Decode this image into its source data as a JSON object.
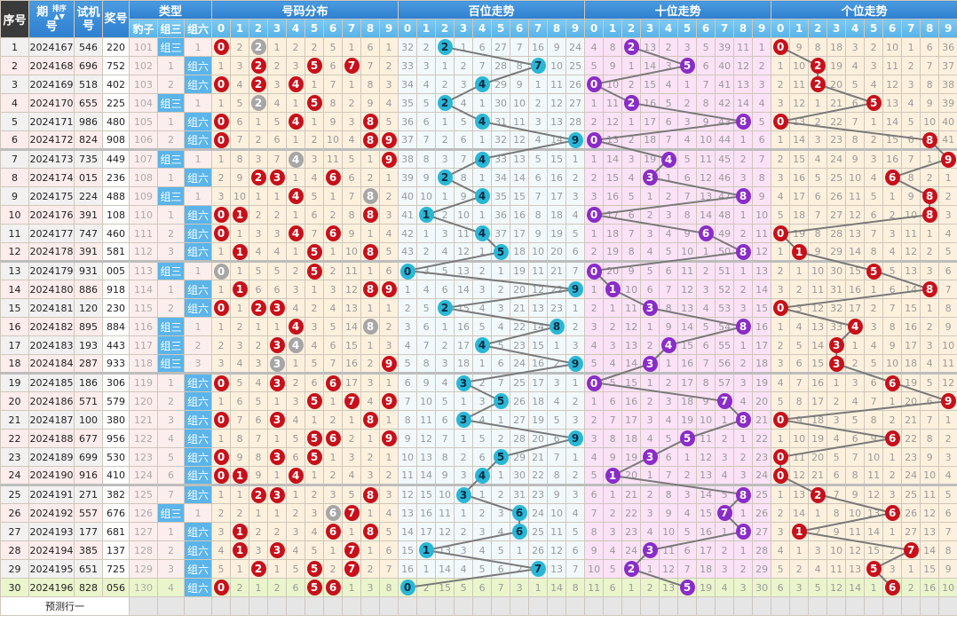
{
  "header": {
    "seq": "序号",
    "issue_a": "期",
    "issue_b": "号",
    "sort": "排序",
    "sort_arrows": "▲▼",
    "trial_a": "试机",
    "trial_b": "号",
    "draw": "奖号",
    "type": "类型",
    "type_cols": [
      "豹子",
      "组三",
      "组六"
    ],
    "sections": [
      "号码分布",
      "百位走势",
      "十位走势",
      "个位走势"
    ],
    "digits": [
      "0",
      "1",
      "2",
      "3",
      "4",
      "5",
      "6",
      "7",
      "8",
      "9"
    ]
  },
  "rows": [
    {
      "seq": "1",
      "issue": "2024167",
      "trial": "546",
      "draw": "220"
    },
    {
      "seq": "2",
      "issue": "2024168",
      "trial": "696",
      "draw": "752"
    },
    {
      "seq": "3",
      "issue": "2024169",
      "trial": "518",
      "draw": "402"
    },
    {
      "seq": "4",
      "issue": "2024170",
      "trial": "655",
      "draw": "225"
    },
    {
      "seq": "5",
      "issue": "2024171",
      "trial": "986",
      "draw": "480"
    },
    {
      "seq": "6",
      "issue": "2024172",
      "trial": "824",
      "draw": "908"
    },
    {
      "seq": "7",
      "issue": "2024173",
      "trial": "735",
      "draw": "449"
    },
    {
      "seq": "8",
      "issue": "2024174",
      "trial": "015",
      "draw": "236"
    },
    {
      "seq": "9",
      "issue": "2024175",
      "trial": "224",
      "draw": "488"
    },
    {
      "seq": "10",
      "issue": "2024176",
      "trial": "391",
      "draw": "108"
    },
    {
      "seq": "11",
      "issue": "2024177",
      "trial": "747",
      "draw": "460"
    },
    {
      "seq": "12",
      "issue": "2024178",
      "trial": "391",
      "draw": "581"
    },
    {
      "seq": "13",
      "issue": "2024179",
      "trial": "931",
      "draw": "005"
    },
    {
      "seq": "14",
      "issue": "2024180",
      "trial": "886",
      "draw": "918"
    },
    {
      "seq": "15",
      "issue": "2024181",
      "trial": "120",
      "draw": "230"
    },
    {
      "seq": "16",
      "issue": "2024182",
      "trial": "895",
      "draw": "884"
    },
    {
      "seq": "17",
      "issue": "2024183",
      "trial": "193",
      "draw": "443"
    },
    {
      "seq": "18",
      "issue": "2024184",
      "trial": "287",
      "draw": "933"
    },
    {
      "seq": "19",
      "issue": "2024185",
      "trial": "186",
      "draw": "306"
    },
    {
      "seq": "20",
      "issue": "2024186",
      "trial": "571",
      "draw": "579"
    },
    {
      "seq": "21",
      "issue": "2024187",
      "trial": "100",
      "draw": "380"
    },
    {
      "seq": "22",
      "issue": "2024188",
      "trial": "677",
      "draw": "956"
    },
    {
      "seq": "23",
      "issue": "2024189",
      "trial": "699",
      "draw": "530"
    },
    {
      "seq": "24",
      "issue": "2024190",
      "trial": "916",
      "draw": "410"
    },
    {
      "seq": "25",
      "issue": "2024191",
      "trial": "271",
      "draw": "382"
    },
    {
      "seq": "26",
      "issue": "2024192",
      "trial": "557",
      "draw": "676"
    },
    {
      "seq": "27",
      "issue": "2024193",
      "trial": "177",
      "draw": "681"
    },
    {
      "seq": "28",
      "issue": "2024194",
      "trial": "385",
      "draw": "137"
    },
    {
      "seq": "29",
      "issue": "2024195",
      "trial": "651",
      "draw": "725"
    },
    {
      "seq": "30",
      "issue": "2024196",
      "trial": "828",
      "draw": "056"
    }
  ],
  "first_row_omissions": {
    "type": [
      101,
      0,
      1
    ],
    "distribution": [
      0,
      2,
      0,
      1,
      2,
      2,
      5,
      1,
      6,
      1
    ],
    "hundreds": [
      32,
      2,
      0,
      1,
      6,
      27,
      7,
      16,
      9,
      24
    ],
    "tens": [
      4,
      8,
      0,
      13,
      2,
      3,
      5,
      39,
      11,
      1
    ],
    "units": [
      0,
      9,
      8,
      18,
      3,
      2,
      10,
      1,
      6,
      36
    ]
  },
  "predict_label": "预测行一",
  "colors": {
    "hit_red": "#c8101a",
    "repeat_gray": "#a6a6a6",
    "hundreds_ball": "#2ab7d6",
    "tens_ball": "#8a2cc9",
    "units_ball": "#c8101a",
    "type_hit": "#5bb5ea",
    "line": "#7a7a7a"
  }
}
